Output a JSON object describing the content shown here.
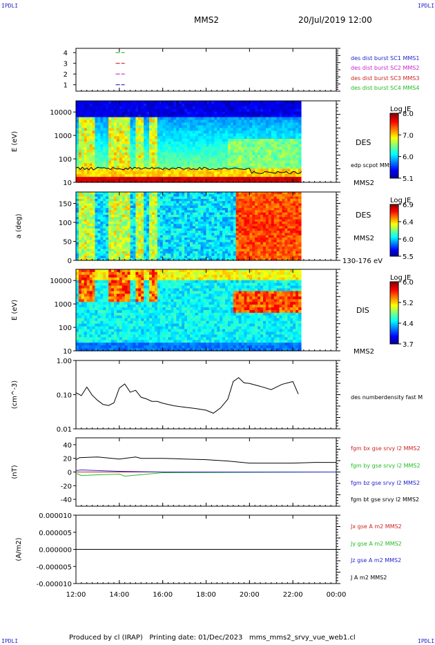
{
  "header": {
    "corner_label": "IPDLI",
    "spacecraft": "MMS2",
    "date": "20/Jul/2019 12:00"
  },
  "footer": {
    "text": "Produced by cl (IRAP)   Printing date: 01/Dec/2023   mms_mms2_srvy_vue_web1.cl"
  },
  "time_axis": {
    "ticks": [
      "12:00",
      "14:00",
      "16:00",
      "18:00",
      "20:00",
      "22:00",
      "00:00"
    ]
  },
  "colors": {
    "sc1": "#2222cc",
    "sc2": "#cc22cc",
    "sc3": "#cc2222",
    "sc4": "#22bb22",
    "bx": "#cc2222",
    "by": "#22bb22",
    "bz": "#2222cc",
    "bt": "#000000"
  },
  "chart_data": [
    {
      "type": "line",
      "panel": "burst-availability",
      "yticks": [
        "4",
        "3",
        "2",
        "1"
      ],
      "series": [
        {
          "name": "des dist burst SC1 MMS1",
          "level": 1,
          "intervals": [
            [
              "13:50",
              "14:15"
            ]
          ]
        },
        {
          "name": "des dist burst SC2 MMS2",
          "level": 2,
          "intervals": [
            [
              "13:50",
              "14:15"
            ]
          ]
        },
        {
          "name": "des dist burst SC3 MMS3",
          "level": 3,
          "intervals": [
            [
              "13:50",
              "14:15"
            ]
          ]
        },
        {
          "name": "des dist burst SC4 MMS4",
          "level": 4,
          "intervals": [
            [
              "13:50",
              "14:15"
            ]
          ]
        }
      ]
    },
    {
      "type": "heatmap",
      "panel": "des-energy",
      "ylabel": "E (eV)",
      "yticks": [
        "10000",
        "1000",
        "100",
        "10"
      ],
      "ylim": [
        10,
        30000
      ],
      "yscale": "log",
      "label": "DES",
      "spacecraft": "MMS2",
      "overlay": "edp scpot MMS2",
      "colorbar": {
        "title": "Log JE",
        "ticks": [
          "8.0",
          "7.0",
          "6.0",
          "5.1"
        ],
        "range": [
          5.1,
          8.1
        ]
      }
    },
    {
      "type": "heatmap",
      "panel": "des-pitch-angle",
      "ylabel": "a (deg)",
      "yticks": [
        "150",
        "100",
        "50",
        "0"
      ],
      "ylim": [
        0,
        180
      ],
      "label": "DES",
      "spacecraft": "MMS2",
      "energy_range": "130-176 eV",
      "colorbar": {
        "title": "Log JE",
        "ticks": [
          "6.9",
          "6.4",
          "6.0",
          "5.5"
        ],
        "range": [
          5.5,
          7.0
        ]
      }
    },
    {
      "type": "heatmap",
      "panel": "dis-energy",
      "ylabel": "E (eV)",
      "yticks": [
        "10000",
        "1000",
        "100",
        "10"
      ],
      "ylim": [
        10,
        30000
      ],
      "yscale": "log",
      "label": "DIS",
      "spacecraft": "MMS2",
      "colorbar": {
        "title": "Log JE",
        "ticks": [
          "6.0",
          "5.2",
          "4.4",
          "3.7"
        ],
        "range": [
          3.7,
          6.1
        ]
      }
    },
    {
      "type": "line",
      "panel": "density",
      "ylabel": "(cm^-3)",
      "yticks": [
        "1.00",
        "0.10",
        "0.01"
      ],
      "ylim": [
        0.01,
        1.0
      ],
      "yscale": "log",
      "series": [
        {
          "name": "des numberdensity fast M",
          "color": "#000000",
          "x": [
            "12:00",
            "12:15",
            "12:30",
            "12:45",
            "13:00",
            "13:15",
            "13:30",
            "13:45",
            "14:00",
            "14:15",
            "14:30",
            "14:45",
            "15:00",
            "15:15",
            "15:30",
            "15:45",
            "16:00",
            "16:30",
            "17:00",
            "17:30",
            "18:00",
            "18:20",
            "18:40",
            "19:00",
            "19:15",
            "19:30",
            "19:45",
            "20:00",
            "20:30",
            "21:00",
            "21:30",
            "22:00",
            "22:15"
          ],
          "y": [
            0.12,
            0.09,
            0.17,
            0.1,
            0.07,
            0.055,
            0.045,
            0.06,
            0.15,
            0.2,
            0.11,
            0.13,
            0.08,
            0.07,
            0.065,
            0.06,
            0.055,
            0.05,
            0.045,
            0.04,
            0.035,
            0.03,
            0.04,
            0.07,
            0.25,
            0.3,
            0.22,
            0.2,
            0.18,
            0.15,
            0.2,
            0.24,
            0.1
          ]
        }
      ]
    },
    {
      "type": "line",
      "panel": "magnetic-field",
      "ylabel": "(nT)",
      "yticks": [
        "40",
        "20",
        "0",
        "-20",
        "-40"
      ],
      "ylim": [
        -50,
        50
      ],
      "series": [
        {
          "name": "fgm bx gse srvy l2 MMS2",
          "color": "#cc2222",
          "x": [
            "12:00",
            "18:00",
            "00:00"
          ],
          "y": [
            0,
            0,
            0
          ]
        },
        {
          "name": "fgm by gse srvy l2 MMS2",
          "color": "#22bb22",
          "x": [
            "12:00",
            "12:15",
            "14:00",
            "14:15",
            "16:00",
            "00:00"
          ],
          "y": [
            -2,
            -5,
            -3,
            -6,
            -1,
            0
          ]
        },
        {
          "name": "fgm bz gse srvy l2 MMS2",
          "color": "#2222cc",
          "x": [
            "12:00",
            "12:15",
            "14:00",
            "16:00",
            "00:00"
          ],
          "y": [
            2,
            3,
            1,
            0,
            0
          ]
        },
        {
          "name": "fgm bt gse srvy l2 MMS2",
          "color": "#000000",
          "x": [
            "12:00",
            "12:10",
            "13:00",
            "14:00",
            "14:45",
            "15:00",
            "16:00",
            "17:00",
            "18:00",
            "19:00",
            "20:00",
            "21:00",
            "22:00",
            "23:00",
            "00:00"
          ],
          "y": [
            18,
            21,
            22,
            19,
            22,
            20,
            20,
            19,
            18,
            16,
            13,
            13,
            13,
            14,
            14
          ]
        }
      ]
    },
    {
      "type": "line",
      "panel": "current-density",
      "ylabel": "(A/m2)",
      "yticks": [
        "0.000010",
        "0.000005",
        "0.000000",
        "-0.000005",
        "-0.000010"
      ],
      "ylim": [
        -1e-05,
        1e-05
      ],
      "series": [
        {
          "name": "Jx gse A m2 MMS2",
          "color": "#cc2222",
          "x": [
            "12:00",
            "00:00"
          ],
          "y": [
            0,
            0
          ]
        },
        {
          "name": "Jy gse A m2 MMS2",
          "color": "#22bb22",
          "x": [
            "12:00",
            "00:00"
          ],
          "y": [
            0,
            0
          ]
        },
        {
          "name": "Jz gse A m2 MMS2",
          "color": "#2222cc",
          "x": [
            "12:00",
            "00:00"
          ],
          "y": [
            0,
            0
          ]
        },
        {
          "name": "J A m2 MMS2",
          "color": "#000000",
          "x": [
            "12:00",
            "00:00"
          ],
          "y": [
            0,
            0
          ]
        }
      ]
    }
  ]
}
